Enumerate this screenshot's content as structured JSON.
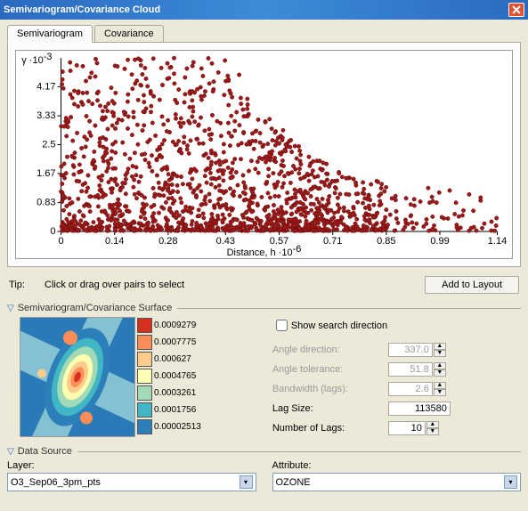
{
  "window": {
    "title": "Semivariogram/Covariance Cloud"
  },
  "tabs": {
    "semivariogram": "Semivariogram",
    "covariance": "Covariance"
  },
  "chart": {
    "type": "scatter",
    "ylabel_prefix": "γ ·10",
    "ylabel_exp": "-3",
    "xlabel_prefix": "Distance, h ·10",
    "xlabel_exp": "-6",
    "xlim": [
      0,
      1.14
    ],
    "ylim": [
      0,
      5.0
    ],
    "xticks": [
      0,
      0.14,
      0.28,
      0.43,
      0.57,
      0.71,
      0.85,
      0.99,
      1.14
    ],
    "yticks": [
      0,
      0.83,
      1.67,
      2.5,
      3.33,
      4.17
    ],
    "xtick_labels": [
      "0",
      "0.14",
      "0.28",
      "0.43",
      "0.57",
      "0.71",
      "0.85",
      "0.99",
      "1.14"
    ],
    "ytick_labels": [
      "0",
      "0.83",
      "1.67",
      "2.5",
      "3.33",
      "4.17"
    ],
    "point_fill": "#a01818",
    "point_stroke": "#5a0c0c",
    "point_radius": 2.2,
    "background": "#ffffff",
    "axis_color": "#000000",
    "tick_font_size": 10,
    "n_points": 2200,
    "seed": 7
  },
  "tip": {
    "label": "Tip:",
    "text": "Click or drag over pairs to select"
  },
  "add_to_layout": "Add to Layout",
  "surface": {
    "header": "Semivariogram/Covariance Surface",
    "bg": "#2a7ab8",
    "band_color": "#8ec9d6",
    "legend": [
      {
        "color": "#d7301f",
        "value": "0.0009279"
      },
      {
        "color": "#fc8d59",
        "value": "0.0007775"
      },
      {
        "color": "#fdcc8a",
        "value": "0.000627"
      },
      {
        "color": "#ffffb2",
        "value": "0.0004765"
      },
      {
        "color": "#a1dab4",
        "value": "0.0003261"
      },
      {
        "color": "#41b6c4",
        "value": "0.0001756"
      },
      {
        "color": "#2c7fb8",
        "value": "0.00002513"
      }
    ]
  },
  "options": {
    "show_search_direction": "Show search direction",
    "angle_direction": {
      "label": "Angle direction:",
      "value": "337.0"
    },
    "angle_tolerance": {
      "label": "Angle tolerance:",
      "value": "51.8"
    },
    "bandwidth": {
      "label": "Bandwidth (lags):",
      "value": "2.6"
    },
    "lag_size": {
      "label": "Lag Size:",
      "value": "113580"
    },
    "number_of_lags": {
      "label": "Number of Lags:",
      "value": "10"
    }
  },
  "data_source": {
    "header": "Data Source",
    "layer_label": "Layer:",
    "layer_value": "O3_Sep06_3pm_pts",
    "attribute_label": "Attribute:",
    "attribute_value": "OZONE"
  }
}
